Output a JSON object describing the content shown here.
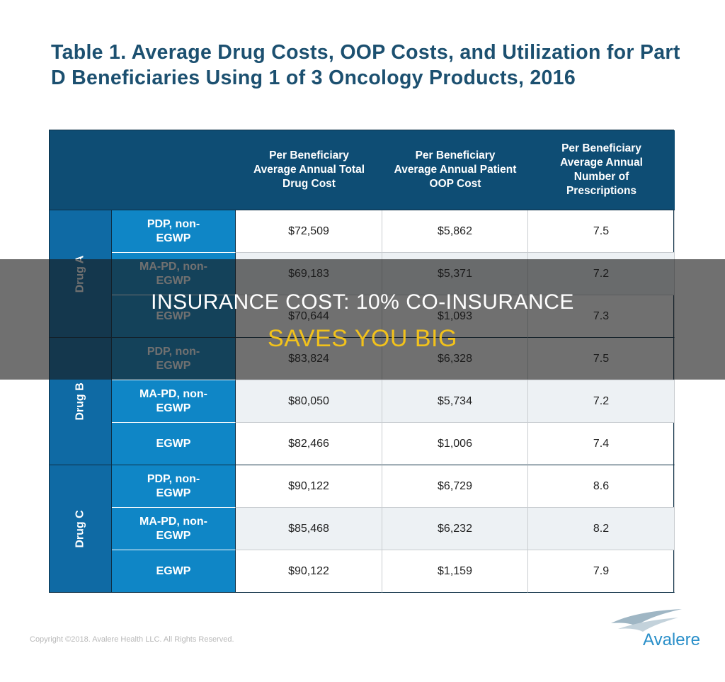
{
  "header": {
    "title": "Table 1. Average Drug Costs, OOP Costs, and Utilization for Part D Beneficiaries Using 1 of 3 Oncology Products, 2016"
  },
  "table": {
    "columns": [
      "Per Beneficiary Average Annual Total Drug Cost",
      "Per Beneficiary Average Annual Patient OOP Cost",
      "Per Beneficiary Average Annual Number of Prescriptions"
    ],
    "groups": [
      {
        "drug": "Drug A",
        "rows": [
          {
            "plan": "PDP, non-EGWP",
            "cells": [
              "$72,509",
              "$5,862",
              "7.5"
            ]
          },
          {
            "plan": "MA-PD, non-EGWP",
            "cells": [
              "$69,183",
              "$5,371",
              "7.2"
            ]
          },
          {
            "plan": "EGWP",
            "cells": [
              "$70,644",
              "$1,093",
              "7.3"
            ]
          }
        ]
      },
      {
        "drug": "Drug B",
        "rows": [
          {
            "plan": "PDP, non-EGWP",
            "cells": [
              "$83,824",
              "$6,328",
              "7.5"
            ]
          },
          {
            "plan": "MA-PD, non-EGWP",
            "cells": [
              "$80,050",
              "$5,734",
              "7.2"
            ]
          },
          {
            "plan": "EGWP",
            "cells": [
              "$82,466",
              "$1,006",
              "7.4"
            ]
          }
        ]
      },
      {
        "drug": "Drug C",
        "rows": [
          {
            "plan": "PDP, non-EGWP",
            "cells": [
              "$90,122",
              "$6,729",
              "8.6"
            ]
          },
          {
            "plan": "MA-PD, non-EGWP",
            "cells": [
              "$85,468",
              "$6,232",
              "8.2"
            ]
          },
          {
            "plan": "EGWP",
            "cells": [
              "$90,122",
              "$1,159",
              "7.9"
            ]
          }
        ]
      }
    ]
  },
  "banner": {
    "line1": "INSURANCE COST: 10% CO-INSURANCE",
    "line2": "SAVES YOU BIG"
  },
  "footer": {
    "copyright": "Copyright ©2018. Avalere Health LLC. All Rights Reserved.",
    "logo": "Avalere"
  }
}
